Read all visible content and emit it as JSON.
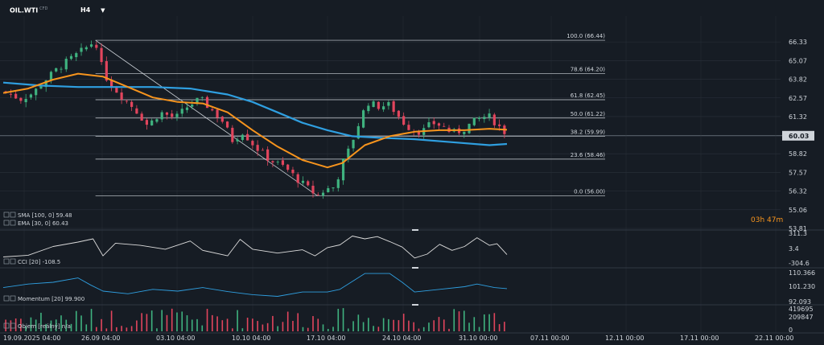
{
  "header": {
    "symbol": "OIL.WTI",
    "symbol_tag": "CFD",
    "timeframe": "H4"
  },
  "countdown": {
    "hours": "03",
    "h_unit": "h",
    "minutes": "47",
    "m_unit": "m"
  },
  "colors": {
    "background": "#161c24",
    "grid": "#2a313b",
    "bull": "#3fb27f",
    "bear": "#e2455d",
    "sma": "#2f9fe0",
    "ema": "#f7941d",
    "fib": "#cfd4da",
    "cci": "#dcdcdc",
    "momentum": "#2f9fe0",
    "volume_bull": "#3fb27f",
    "volume_bear": "#e2455d",
    "countdown": "#f7941d"
  },
  "chart_data": [
    {
      "type": "candlestick",
      "title": "OIL.WTI H4",
      "price_axis_ticks": [
        "66.33",
        "65.07",
        "63.82",
        "62.57",
        "61.32",
        "60.03",
        "58.82",
        "57.57",
        "56.32",
        "55.06",
        "53.81"
      ],
      "ylim": [
        53.81,
        67.2
      ],
      "current_price": "60.03",
      "x_tick_labels": [
        "19.09.2025 04:00",
        "26.09 04:00",
        "03.10 04:00",
        "10.10 04:00",
        "17.10 04:00",
        "24.10 04:00",
        "31.10 00:00",
        "07.11 00:00",
        "12.11 00:00",
        "17.11 00:00",
        "22.11 00:00"
      ],
      "price_path": [
        [
          0,
          63.0
        ],
        [
          14,
          62.5
        ],
        [
          24,
          62.9
        ],
        [
          34,
          63.8
        ],
        [
          46,
          64.7
        ],
        [
          56,
          65.3
        ],
        [
          66,
          65.9
        ],
        [
          74,
          66.44
        ],
        [
          80,
          64.3
        ],
        [
          86,
          63.5
        ],
        [
          96,
          62.6
        ],
        [
          106,
          61.8
        ],
        [
          116,
          60.7
        ],
        [
          126,
          61.6
        ],
        [
          138,
          61.2
        ],
        [
          148,
          62.0
        ],
        [
          158,
          62.5
        ],
        [
          168,
          61.7
        ],
        [
          176,
          61.0
        ],
        [
          184,
          59.7
        ],
        [
          192,
          60.3
        ],
        [
          202,
          59.3
        ],
        [
          214,
          58.4
        ],
        [
          226,
          57.9
        ],
        [
          236,
          57.1
        ],
        [
          246,
          56.4
        ],
        [
          252,
          56.0
        ],
        [
          258,
          56.4
        ],
        [
          266,
          56.6
        ],
        [
          272,
          58.2
        ],
        [
          278,
          59.2
        ],
        [
          284,
          60.6
        ],
        [
          292,
          62.3
        ],
        [
          300,
          62.0
        ],
        [
          310,
          62.1
        ],
        [
          320,
          61.0
        ],
        [
          328,
          60.4
        ],
        [
          336,
          60.3
        ],
        [
          344,
          60.9
        ],
        [
          352,
          60.7
        ],
        [
          360,
          60.2
        ],
        [
          368,
          60.4
        ],
        [
          376,
          60.9
        ],
        [
          384,
          61.3
        ],
        [
          390,
          61.3
        ],
        [
          396,
          60.8
        ],
        [
          402,
          60.3
        ]
      ],
      "candle_count": 100,
      "fibonacci": {
        "swing": [
          [
            74,
            66.44
          ],
          [
            252,
            56.0
          ]
        ],
        "levels": [
          {
            "label": "100.0 (66.44)",
            "price": 66.44
          },
          {
            "label": "78.6 (64.20)",
            "price": 64.2
          },
          {
            "label": "61.8 (62.45)",
            "price": 62.45
          },
          {
            "label": "50.0 (61.22)",
            "price": 61.22
          },
          {
            "label": "38.2 (59.99)",
            "price": 59.99
          },
          {
            "label": "23.6 (58.46)",
            "price": 58.46
          },
          {
            "label": "0.0 (56.00)",
            "price": 56.0
          }
        ]
      },
      "indicators": [
        {
          "name": "SMA",
          "label": "SMA [100, 0] 59.48",
          "values": [
            [
              0,
              63.6
            ],
            [
              30,
              63.4
            ],
            [
              60,
              63.3
            ],
            [
              90,
              63.3
            ],
            [
              120,
              63.3
            ],
            [
              150,
              63.2
            ],
            [
              180,
              62.8
            ],
            [
              200,
              62.3
            ],
            [
              220,
              61.6
            ],
            [
              240,
              60.9
            ],
            [
              260,
              60.4
            ],
            [
              280,
              60.0
            ],
            [
              300,
              59.9
            ],
            [
              330,
              59.8
            ],
            [
              360,
              59.6
            ],
            [
              390,
              59.4
            ],
            [
              404,
              59.48
            ]
          ]
        },
        {
          "name": "EMA",
          "label": "EMA [30, 0] 60.43",
          "values": [
            [
              0,
              62.9
            ],
            [
              20,
              63.2
            ],
            [
              40,
              63.8
            ],
            [
              60,
              64.2
            ],
            [
              80,
              64.0
            ],
            [
              100,
              63.3
            ],
            [
              120,
              62.6
            ],
            [
              140,
              62.3
            ],
            [
              160,
              62.2
            ],
            [
              180,
              61.6
            ],
            [
              200,
              60.4
            ],
            [
              220,
              59.3
            ],
            [
              240,
              58.4
            ],
            [
              260,
              57.9
            ],
            [
              272,
              58.2
            ],
            [
              290,
              59.4
            ],
            [
              310,
              60.0
            ],
            [
              330,
              60.3
            ],
            [
              350,
              60.4
            ],
            [
              370,
              60.4
            ],
            [
              390,
              60.5
            ],
            [
              404,
              60.43
            ]
          ]
        }
      ]
    },
    {
      "type": "line",
      "name": "CCI",
      "label": "CCI [20] -108.5",
      "y_ticks": [
        "311.3",
        "3.4",
        "-304.6"
      ],
      "ylim": [
        -304.6,
        311.3
      ],
      "values": [
        [
          0,
          -150
        ],
        [
          20,
          -120
        ],
        [
          40,
          40
        ],
        [
          60,
          120
        ],
        [
          72,
          180
        ],
        [
          80,
          -130
        ],
        [
          90,
          100
        ],
        [
          110,
          60
        ],
        [
          130,
          -10
        ],
        [
          150,
          140
        ],
        [
          160,
          -30
        ],
        [
          180,
          -130
        ],
        [
          190,
          170
        ],
        [
          200,
          -10
        ],
        [
          220,
          -80
        ],
        [
          240,
          -20
        ],
        [
          250,
          -130
        ],
        [
          260,
          20
        ],
        [
          270,
          70
        ],
        [
          280,
          230
        ],
        [
          290,
          180
        ],
        [
          300,
          220
        ],
        [
          310,
          130
        ],
        [
          320,
          30
        ],
        [
          330,
          -170
        ],
        [
          340,
          -100
        ],
        [
          350,
          80
        ],
        [
          360,
          -30
        ],
        [
          370,
          40
        ],
        [
          380,
          200
        ],
        [
          390,
          60
        ],
        [
          396,
          90
        ],
        [
          404,
          -108.5
        ]
      ]
    },
    {
      "type": "line",
      "name": "Momentum",
      "label": "Momentum [20] 99.900",
      "y_ticks": [
        "110.366",
        "101.230",
        "92.093"
      ],
      "ylim": [
        92.093,
        110.366
      ],
      "values": [
        [
          0,
          100.5
        ],
        [
          20,
          102.5
        ],
        [
          40,
          103.5
        ],
        [
          60,
          106.0
        ],
        [
          70,
          102.0
        ],
        [
          80,
          98.5
        ],
        [
          100,
          97.0
        ],
        [
          120,
          99.5
        ],
        [
          140,
          98.5
        ],
        [
          160,
          100.5
        ],
        [
          180,
          98.2
        ],
        [
          200,
          96.5
        ],
        [
          220,
          95.5
        ],
        [
          240,
          98.0
        ],
        [
          260,
          98.0
        ],
        [
          270,
          99.5
        ],
        [
          290,
          108.5
        ],
        [
          310,
          108.5
        ],
        [
          320,
          103.5
        ],
        [
          330,
          98.0
        ],
        [
          350,
          99.5
        ],
        [
          370,
          101.0
        ],
        [
          380,
          102.5
        ],
        [
          394,
          100.5
        ],
        [
          404,
          99.9
        ]
      ]
    },
    {
      "type": "bar",
      "name": "Volume",
      "label": "Objem [reálný] n/a",
      "y_ticks": [
        "419695",
        "209847",
        "0"
      ],
      "ylim": [
        0,
        419695
      ]
    }
  ]
}
